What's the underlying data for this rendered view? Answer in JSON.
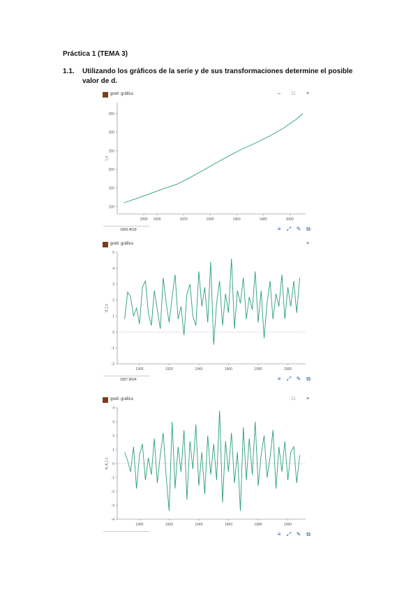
{
  "document": {
    "heading": "Práctica 1 (TEMA 3)",
    "question_number": "1.1.",
    "question_text": "Utilizando los gráficos de la serie y de sus transformaciones determine el posible valor de d."
  },
  "accent_color": "#2a9d7c",
  "windows": [
    {
      "title": "gretl: gráfico",
      "status_text": "1959.4518",
      "controls": [
        "–",
        "□",
        "×"
      ],
      "chart_data": {
        "type": "line",
        "title": "",
        "xlabel": "",
        "ylabel": "l_c",
        "x_ticks": [
          "1890",
          "1900",
          "1920",
          "1940",
          "1960",
          "1980",
          "2000"
        ],
        "y_ticks": [
          "100",
          "150",
          "200",
          "250",
          "300",
          "350"
        ],
        "xlim": [
          1870,
          2012
        ],
        "ylim": [
          80,
          380
        ],
        "series": [
          {
            "x": [
              1875,
              1885,
              1895,
              1905,
              1915,
              1925,
              1935,
              1945,
              1955,
              1965,
              1975,
              1985,
              1995,
              2005,
              2010
            ],
            "values": [
              110,
              122,
              135,
              148,
              160,
              178,
              198,
              218,
              238,
              256,
              272,
              290,
              310,
              335,
              350
            ]
          }
        ]
      }
    },
    {
      "title": "gretl: gráfico",
      "status_text": "1957.9024",
      "controls": [
        "×"
      ],
      "chart_data": {
        "type": "line",
        "title": "",
        "xlabel": "",
        "ylabel": "d_l_c",
        "x_ticks": [
          "1900",
          "1920",
          "1940",
          "1960",
          "1980",
          "2000"
        ],
        "y_ticks": [
          "-2",
          "-1",
          "0",
          "1",
          "2",
          "3",
          "4",
          "5"
        ],
        "xlim": [
          1885,
          2012
        ],
        "ylim": [
          -2,
          5
        ],
        "series": [
          {
            "x": [
              1890,
              1892,
              1894,
              1896,
              1898,
              1900,
              1902,
              1904,
              1906,
              1908,
              1910,
              1912,
              1914,
              1916,
              1918,
              1920,
              1922,
              1924,
              1926,
              1928,
              1930,
              1932,
              1934,
              1936,
              1938,
              1940,
              1942,
              1944,
              1946,
              1948,
              1950,
              1952,
              1954,
              1956,
              1958,
              1960,
              1962,
              1964,
              1966,
              1968,
              1970,
              1972,
              1974,
              1976,
              1978,
              1980,
              1982,
              1984,
              1986,
              1988,
              1990,
              1992,
              1994,
              1996,
              1998,
              2000,
              2002,
              2004,
              2006,
              2008
            ],
            "values": [
              0.8,
              2.5,
              2.2,
              1.0,
              1.5,
              0.5,
              2.8,
              3.2,
              1.2,
              0.4,
              2.6,
              1.4,
              0.2,
              3.4,
              1.8,
              0.6,
              2.2,
              3.6,
              0.8,
              1.6,
              -0.2,
              2.4,
              3.0,
              1.0,
              0.4,
              3.8,
              1.6,
              2.8,
              0.6,
              4.4,
              -0.8,
              1.8,
              3.2,
              0.4,
              2.4,
              1.2,
              4.6,
              0.2,
              2.6,
              1.8,
              3.4,
              0.8,
              2.2,
              1.4,
              3.8,
              0.6,
              2.6,
              -0.4,
              1.8,
              3.2,
              0.8,
              2.4,
              1.6,
              3.6,
              0.8,
              2.8,
              1.6,
              3.2,
              1.2,
              3.4
            ]
          }
        ]
      }
    },
    {
      "title": "gretl: gráfico",
      "status_text": "",
      "controls": [
        "□",
        "×"
      ],
      "chart_data": {
        "type": "line",
        "title": "",
        "xlabel": "",
        "ylabel": "d_d_l_c",
        "x_ticks": [
          "1900",
          "1920",
          "1940",
          "1960",
          "1980",
          "2000"
        ],
        "y_ticks": [
          "-4",
          "-3",
          "-2",
          "-1",
          "0",
          "1",
          "2",
          "3",
          "4"
        ],
        "xlim": [
          1885,
          2012
        ],
        "ylim": [
          -4,
          4
        ],
        "series": [
          {
            "x": [
              1890,
              1892,
              1894,
              1896,
              1898,
              1900,
              1902,
              1904,
              1906,
              1908,
              1910,
              1912,
              1914,
              1916,
              1918,
              1920,
              1922,
              1924,
              1926,
              1928,
              1930,
              1932,
              1934,
              1936,
              1938,
              1940,
              1942,
              1944,
              1946,
              1948,
              1950,
              1952,
              1954,
              1956,
              1958,
              1960,
              1962,
              1964,
              1966,
              1968,
              1970,
              1972,
              1974,
              1976,
              1978,
              1980,
              1982,
              1984,
              1986,
              1988,
              1990,
              1992,
              1994,
              1996,
              1998,
              2000,
              2002,
              2004,
              2006,
              2008
            ],
            "values": [
              0.8,
              0.2,
              -0.6,
              1.2,
              -1.8,
              0.6,
              1.4,
              -1.2,
              0.4,
              -0.8,
              1.8,
              -1.4,
              0.6,
              2.2,
              -1.0,
              -3.4,
              3.0,
              -1.8,
              1.2,
              -0.6,
              2.4,
              -2.6,
              1.6,
              -0.4,
              2.8,
              -1.6,
              0.8,
              -2.2,
              2.0,
              -0.8,
              1.4,
              -1.2,
              3.8,
              -2.8,
              1.6,
              -0.6,
              2.2,
              -1.4,
              0.8,
              -3.4,
              2.6,
              -1.2,
              1.8,
              -0.8,
              3.0,
              -1.6,
              0.6,
              2.0,
              -1.0,
              0.4,
              2.4,
              -1.8,
              1.2,
              -0.6,
              1.6,
              -1.2,
              0.8,
              1.2,
              -1.4,
              0.6
            ]
          }
        ]
      }
    }
  ]
}
